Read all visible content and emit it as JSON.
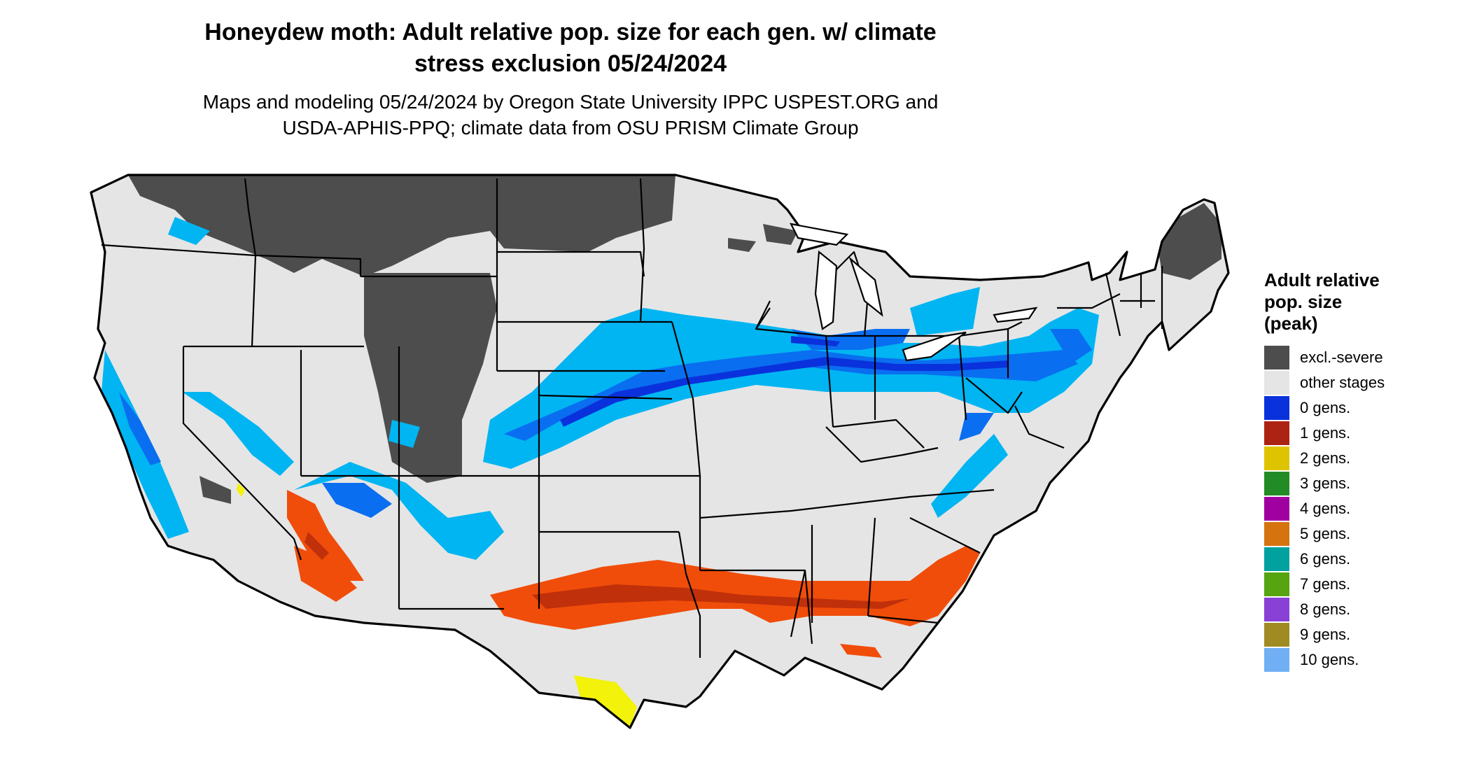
{
  "title": {
    "line1": "Honeydew moth: Adult relative pop. size for each gen. w/ climate",
    "line2": "stress exclusion 05/24/2024"
  },
  "subtitle": {
    "line1": "Maps and modeling 05/24/2024 by Oregon State University IPPC USPEST.ORG and",
    "line2": "USDA-APHIS-PPQ; climate data from OSU PRISM Climate Group"
  },
  "legend": {
    "title_lines": [
      "Adult relative",
      "pop. size",
      "(peak)"
    ],
    "items": [
      {
        "label": "excl.-severe",
        "color": "#4d4d4d"
      },
      {
        "label": "other stages",
        "color": "#e5e5e5"
      },
      {
        "label": "0 gens.",
        "color": "#0a32dc"
      },
      {
        "label": "1 gens.",
        "color": "#ad2313"
      },
      {
        "label": "2 gens.",
        "color": "#dec400"
      },
      {
        "label": "3 gens.",
        "color": "#238b26"
      },
      {
        "label": "4 gens.",
        "color": "#a100a1"
      },
      {
        "label": "5 gens.",
        "color": "#d5730f"
      },
      {
        "label": "6 gens.",
        "color": "#00a19e"
      },
      {
        "label": "7 gens.",
        "color": "#56a40f"
      },
      {
        "label": "8 gens.",
        "color": "#8841d4"
      },
      {
        "label": "9 gens.",
        "color": "#a08b23"
      },
      {
        "label": "10 gens.",
        "color": "#71aff5"
      }
    ]
  },
  "map_colors": {
    "land": "#e5e5e5",
    "excluded": "#4d4d4d",
    "blue_light": "#00b5f2",
    "blue_mid": "#0a6ef0",
    "blue_dark": "#0a32dc",
    "red": "#f04d0a",
    "red_dark": "#c0300a",
    "yellow": "#f2f20a",
    "green": "#2cb62c",
    "border": "#000000"
  }
}
